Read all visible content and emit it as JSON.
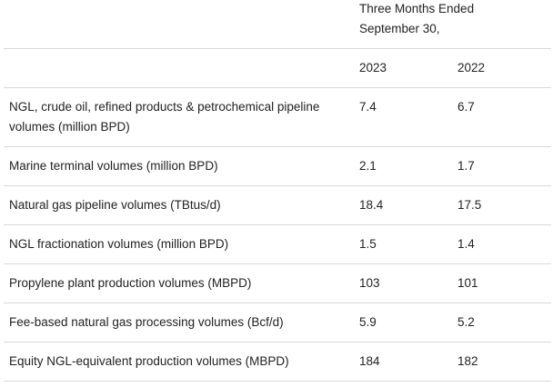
{
  "header": {
    "group_line1": "Three Months Ended",
    "group_line2": "September 30,",
    "year_2023": "2023",
    "year_2022": "2022"
  },
  "rows": [
    {
      "label_line1": "NGL, crude oil, refined products & petrochemical pipeline",
      "label_line2": "volumes (million BPD)",
      "v2023": "7.4",
      "v2022": "6.7"
    },
    {
      "label": "Marine terminal volumes (million BPD)",
      "v2023": "2.1",
      "v2022": "1.7"
    },
    {
      "label": "Natural gas pipeline volumes (TBtus/d)",
      "v2023": "18.4",
      "v2022": "17.5"
    },
    {
      "label": "NGL fractionation volumes (million BPD)",
      "v2023": "1.5",
      "v2022": "1.4"
    },
    {
      "label": "Propylene plant production volumes (MBPD)",
      "v2023": "103",
      "v2022": "101"
    },
    {
      "label": "Fee-based natural gas processing volumes (Bcf/d)",
      "v2023": "5.9",
      "v2022": "5.2"
    },
    {
      "label": "Equity NGL-equivalent production volumes (MBPD)",
      "v2023": "184",
      "v2022": "182"
    }
  ]
}
